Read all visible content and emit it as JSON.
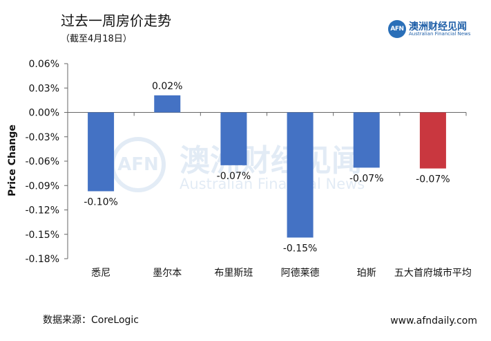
{
  "header": {
    "title": "过去一周房价走势",
    "subtitle": "（截至4月18日）"
  },
  "logo": {
    "badge": "AFN",
    "name_cn": "澳洲财经见闻",
    "name_en": "Australian Financial News"
  },
  "watermark": {
    "badge": "AFN",
    "name_cn": "澳洲财经见闻",
    "name_en": "Australian Financial News"
  },
  "footer": {
    "source": "数据来源：CoreLogic",
    "website": "www.afndaily.com"
  },
  "colors": {
    "bar_default": "#4472c4",
    "bar_highlight": "#c9373f",
    "axis": "#666666"
  },
  "chart_data": {
    "type": "bar",
    "title": "",
    "xlabel": "",
    "ylabel": "Price Change",
    "ylim": [
      -0.18,
      0.06
    ],
    "yticks": [
      0.06,
      0.03,
      0.0,
      -0.03,
      -0.06,
      -0.09,
      -0.12,
      -0.15,
      -0.18
    ],
    "ytick_labels": [
      "0.06%",
      "0.03%",
      "0.00%",
      "-0.03%",
      "-0.06%",
      "-0.09%",
      "-0.12%",
      "-0.15%",
      "-0.18%"
    ],
    "categories": [
      "悉尼",
      "墨尔本",
      "布里斯班",
      "阿德莱德",
      "珀斯",
      "五大首府城市平均"
    ],
    "values": [
      -0.097,
      0.021,
      -0.065,
      -0.154,
      -0.068,
      -0.069
    ],
    "data_labels": [
      "-0.10%",
      "0.02%",
      "-0.07%",
      "-0.15%",
      "-0.07%",
      "-0.07%"
    ],
    "highlight_index": 5,
    "grid": false,
    "legend": "none"
  }
}
